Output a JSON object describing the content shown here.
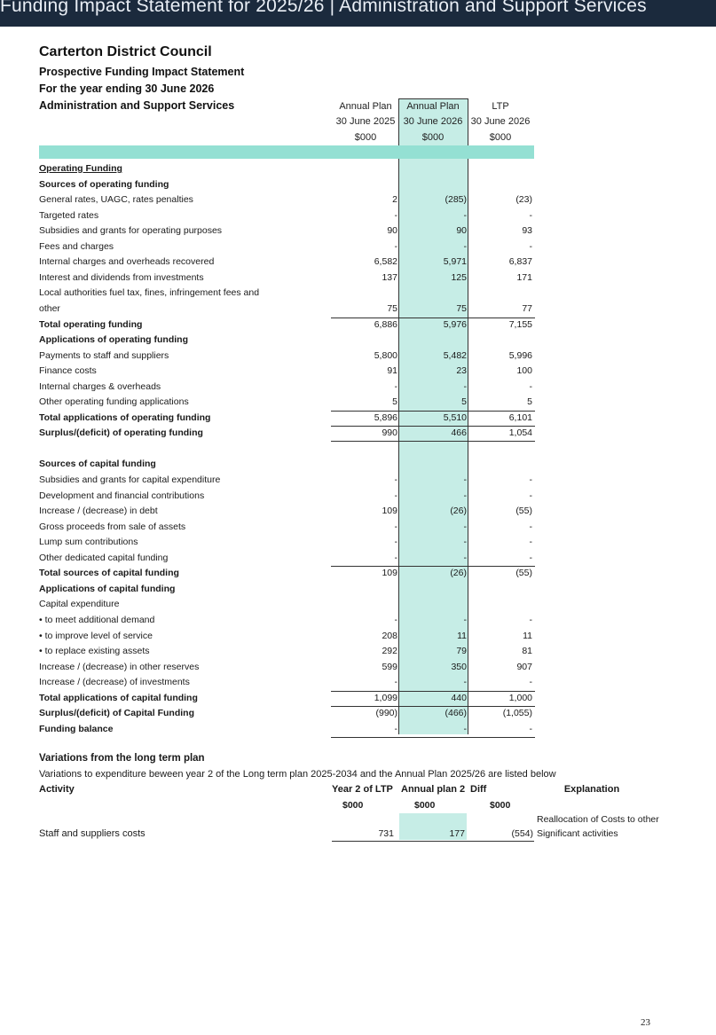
{
  "banner": "Funding Impact Statement for 2025/26 | Administration and Support Services",
  "org": "Carterton District Council",
  "subtitle1": "Prospective Funding Impact Statement",
  "subtitle2": "For the year ending 30 June 2026",
  "subtitle3": "Administration and Support Services",
  "columns": [
    {
      "l1": "Annual Plan",
      "l2": "30 June 2025",
      "l3": "$000"
    },
    {
      "l1": "Annual Plan",
      "l2": "30 June 2026",
      "l3": "$000"
    },
    {
      "l1": "LTP",
      "l2": "30 June 2026",
      "l3": "$000"
    }
  ],
  "rows": [
    {
      "label": "Operating Funding",
      "v": [
        "",
        "",
        ""
      ]
    },
    {
      "label": "Sources of operating funding",
      "v": [
        "",
        "",
        ""
      ]
    },
    {
      "label": "General rates, UAGC, rates penalties",
      "v": [
        "2",
        "(285)",
        "(23)"
      ]
    },
    {
      "label": "Targeted rates",
      "v": [
        "-",
        "-",
        "-"
      ]
    },
    {
      "label": "Subsidies and grants for operating purposes",
      "v": [
        "90",
        "90",
        "93"
      ]
    },
    {
      "label": "Fees and charges",
      "v": [
        "-",
        "-",
        "-"
      ]
    },
    {
      "label": "Internal charges and overheads recovered",
      "v": [
        "6,582",
        "5,971",
        "6,837"
      ]
    },
    {
      "label": "Interest and dividends from investments",
      "v": [
        "137",
        "125",
        "171"
      ]
    },
    {
      "label": "Local authorities fuel tax, fines, infringement fees and",
      "v": [
        "",
        "",
        ""
      ]
    },
    {
      "label": "other",
      "v": [
        "75",
        "75",
        "77"
      ]
    },
    {
      "label": "Total operating funding",
      "v": [
        "6,886",
        "5,976",
        "7,155"
      ]
    },
    {
      "label": "Applications of operating funding",
      "v": [
        "",
        "",
        ""
      ]
    },
    {
      "label": "Payments to staff and suppliers",
      "v": [
        "5,800",
        "5,482",
        "5,996"
      ]
    },
    {
      "label": "Finance costs",
      "v": [
        "91",
        "23",
        "100"
      ]
    },
    {
      "label": "Internal charges & overheads",
      "v": [
        "-",
        "-",
        "-"
      ]
    },
    {
      "label": "Other operating funding applications",
      "v": [
        "5",
        "5",
        "5"
      ]
    },
    {
      "label": "Total applications of operating funding",
      "v": [
        "5,896",
        "5,510",
        "6,101"
      ]
    },
    {
      "label": "Surplus/(deficit) of operating funding",
      "v": [
        "990",
        "466",
        "1,054"
      ]
    },
    {
      "label": "",
      "v": [
        "",
        "",
        ""
      ]
    },
    {
      "label": "Sources of capital funding",
      "v": [
        "",
        "",
        ""
      ]
    },
    {
      "label": "Subsidies and grants for capital expenditure",
      "v": [
        "-",
        "-",
        "-"
      ]
    },
    {
      "label": "Development and financial contributions",
      "v": [
        "-",
        "-",
        "-"
      ]
    },
    {
      "label": "Increase / (decrease) in debt",
      "v": [
        "109",
        "(26)",
        "(55)"
      ]
    },
    {
      "label": "Gross proceeds from sale of assets",
      "v": [
        "-",
        "-",
        "-"
      ]
    },
    {
      "label": "Lump sum contributions",
      "v": [
        "-",
        "-",
        "-"
      ]
    },
    {
      "label": "Other dedicated capital funding",
      "v": [
        "-",
        "-",
        "-"
      ]
    },
    {
      "label": "Total sources of capital funding",
      "v": [
        "109",
        "(26)",
        "(55)"
      ]
    },
    {
      "label": "Applications of capital funding",
      "v": [
        "",
        "",
        ""
      ]
    },
    {
      "label": "Capital expenditure",
      "v": [
        "",
        "",
        ""
      ]
    },
    {
      "label": "• to meet additional demand",
      "v": [
        "-",
        "-",
        "-"
      ]
    },
    {
      "label": "• to improve level of service",
      "v": [
        "208",
        "11",
        "11"
      ]
    },
    {
      "label": "• to replace existing assets",
      "v": [
        "292",
        "79",
        "81"
      ]
    },
    {
      "label": "Increase / (decrease) in other reserves",
      "v": [
        "599",
        "350",
        "907"
      ]
    },
    {
      "label": "Increase / (decrease) of investments",
      "v": [
        "-",
        "-",
        "-"
      ]
    },
    {
      "label": "Total applications of capital funding",
      "v": [
        "1,099",
        "440",
        "1,000"
      ]
    },
    {
      "label": "Surplus/(deficit) of Capital Funding",
      "v": [
        "(990)",
        "(466)",
        "(1,055)"
      ]
    },
    {
      "label": "Funding balance",
      "v": [
        "-",
        "-",
        "-"
      ]
    }
  ],
  "variations": {
    "title": "Variations from the long term plan",
    "desc": "Variations to expenditure beween year 2 of the Long term plan 2025-2034 and the Annual Plan 2025/26 are listed below",
    "headers": {
      "activity": "Activity",
      "c1": "Year 2 of LTP",
      "c2": "Annual plan 2",
      "c3": "Diff",
      "c4": "Explanation"
    },
    "units": [
      "$000",
      "$000",
      "$000"
    ],
    "row": {
      "activity": "Staff and suppliers costs",
      "v1": "731",
      "v2": "177",
      "v3": "(554)",
      "expl1": "Reallocation of Costs to other",
      "expl2": "Significant activities"
    }
  },
  "page_number": "23"
}
